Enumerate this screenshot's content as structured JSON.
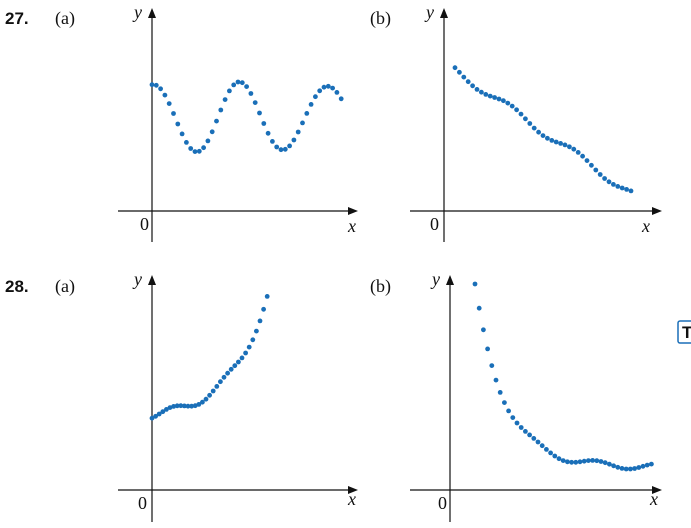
{
  "problems": [
    {
      "number": "27.",
      "parts": [
        {
          "label": "(a)",
          "y_axis": "y",
          "x_axis": "x",
          "origin": "0"
        },
        {
          "label": "(b)",
          "y_axis": "y",
          "x_axis": "x",
          "origin": "0"
        }
      ]
    },
    {
      "number": "28.",
      "parts": [
        {
          "label": "(a)",
          "y_axis": "y",
          "x_axis": "x",
          "origin": "0"
        },
        {
          "label": "(b)",
          "y_axis": "y",
          "x_axis": "x",
          "origin": "0"
        }
      ]
    }
  ],
  "side_icon": "T"
}
